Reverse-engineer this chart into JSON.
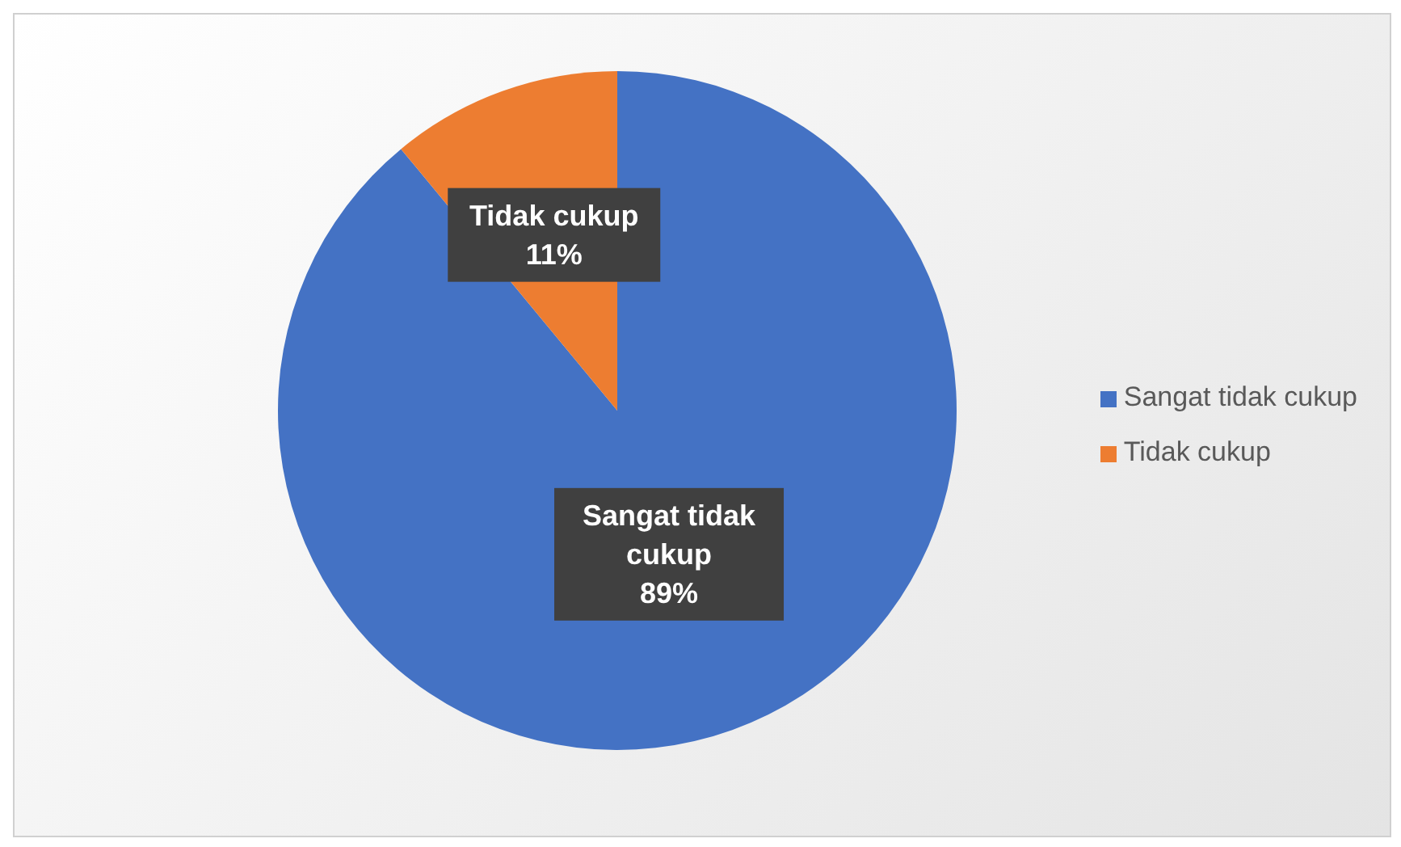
{
  "chart_data": {
    "type": "pie",
    "categories": [
      "Sangat tidak cukup",
      "Tidak cukup"
    ],
    "values": [
      89,
      11
    ],
    "colors": [
      "#4472c4",
      "#ed7d31"
    ],
    "value_labels": [
      "89%",
      "11%"
    ],
    "legend": "right"
  }
}
